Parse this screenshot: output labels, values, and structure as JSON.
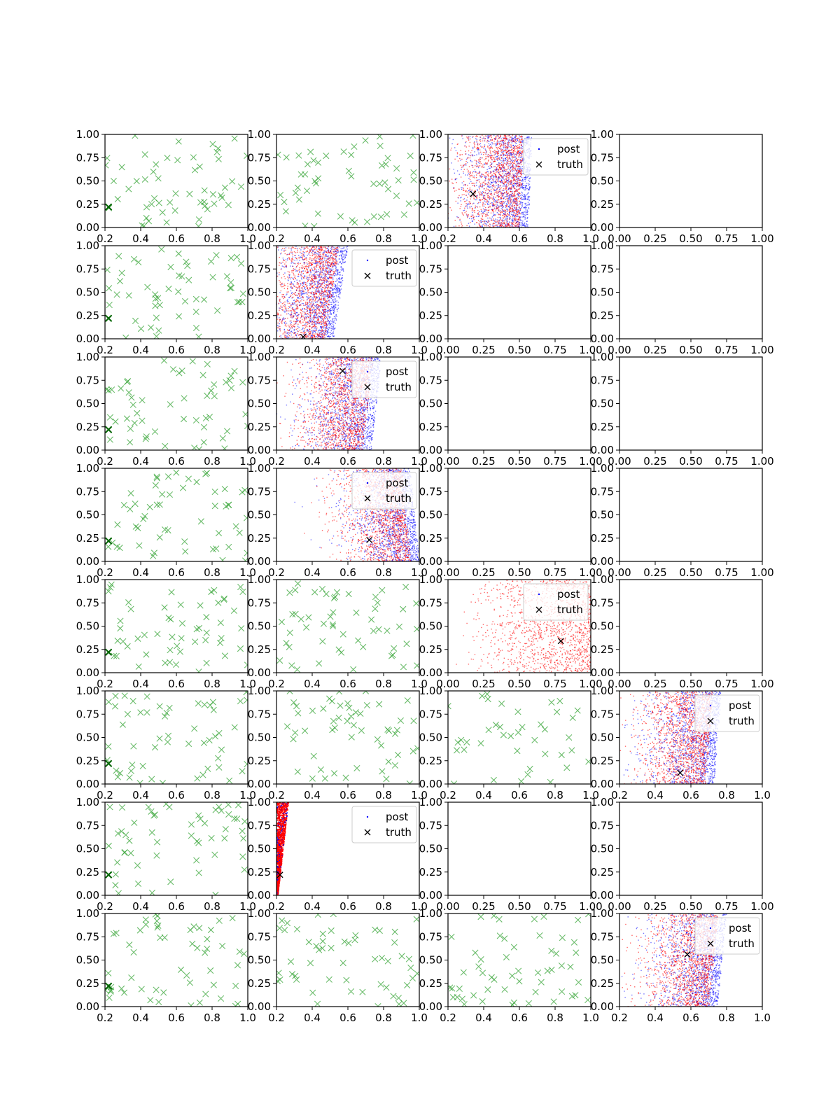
{
  "chart_data": {
    "type": "scatter",
    "grid": false,
    "rows": 8,
    "cols": 4,
    "colors": {
      "green_x": "#2ca02c",
      "post_blue": "#0000ff",
      "post_red": "#ff0000",
      "truth": "#000000"
    },
    "legend_labels": [
      "post",
      "truth"
    ],
    "panels": [
      {
        "row": 0,
        "col": 0,
        "kind": "green",
        "xlim": [
          0.2,
          1.0
        ],
        "ylim": [
          0.0,
          1.0
        ],
        "xticks": [
          "0.2",
          "0.4",
          "0.6",
          "0.8",
          "1.0"
        ],
        "yticks": [
          "0.00",
          "0.25",
          "0.50",
          "0.75",
          "1.00"
        ],
        "marker": [
          0.22,
          0.22
        ]
      },
      {
        "row": 0,
        "col": 1,
        "kind": "green",
        "xlim": [
          0.2,
          1.0
        ],
        "ylim": [
          0.0,
          1.0
        ],
        "xticks": [
          "0.2",
          "0.4",
          "0.6",
          "0.8",
          "1.0"
        ],
        "yticks": [
          "0.00",
          "0.25",
          "0.50",
          "0.75",
          "1.00"
        ]
      },
      {
        "row": 0,
        "col": 2,
        "kind": "posterior",
        "xlim": [
          0.2,
          1.0
        ],
        "ylim": [
          0.0,
          1.0
        ],
        "xticks": [
          "0.2",
          "0.4",
          "0.6",
          "0.8",
          "1.0"
        ],
        "yticks": [
          "0.00",
          "0.25",
          "0.50",
          "0.75",
          "1.00"
        ],
        "truth": [
          0.34,
          0.36
        ],
        "legend": "upper right",
        "edge": [
          0.6,
          0.62
        ]
      },
      {
        "row": 0,
        "col": 3,
        "kind": "empty",
        "xlim": [
          0.0,
          1.0
        ],
        "ylim": [
          0.0,
          1.0
        ],
        "xticks": [
          "0.00",
          "0.25",
          "0.50",
          "0.75",
          "1.00"
        ],
        "yticks": [
          "0.00",
          "0.25",
          "0.50",
          "0.75",
          "1.00"
        ]
      },
      {
        "row": 1,
        "col": 0,
        "kind": "green",
        "xlim": [
          0.2,
          1.0
        ],
        "ylim": [
          0.0,
          1.0
        ],
        "xticks": [
          "0.2",
          "0.4",
          "0.6",
          "0.8",
          "1.0"
        ],
        "yticks": [
          "0.00",
          "0.25",
          "0.50",
          "0.75",
          "1.00"
        ],
        "marker": [
          0.22,
          0.22
        ]
      },
      {
        "row": 1,
        "col": 1,
        "kind": "posterior",
        "xlim": [
          0.2,
          1.0
        ],
        "ylim": [
          0.0,
          1.0
        ],
        "xticks": [
          "0.2",
          "0.4",
          "0.6",
          "0.8",
          "1.0"
        ],
        "yticks": [
          "0.00",
          "0.25",
          "0.50",
          "0.75",
          "1.00"
        ],
        "truth": [
          0.35,
          0.02
        ],
        "legend": "upper right",
        "edge": [
          0.47,
          0.55
        ]
      },
      {
        "row": 1,
        "col": 2,
        "kind": "empty",
        "xlim": [
          0.0,
          1.0
        ],
        "ylim": [
          0.0,
          1.0
        ],
        "xticks": [
          "0.00",
          "0.25",
          "0.50",
          "0.75",
          "1.00"
        ],
        "yticks": [
          "0.00",
          "0.25",
          "0.50",
          "0.75",
          "1.00"
        ]
      },
      {
        "row": 1,
        "col": 3,
        "kind": "empty",
        "xlim": [
          0.0,
          1.0
        ],
        "ylim": [
          0.0,
          1.0
        ],
        "xticks": [
          "0.00",
          "0.25",
          "0.50",
          "0.75",
          "1.00"
        ],
        "yticks": [
          "0.00",
          "0.25",
          "0.50",
          "0.75",
          "1.00"
        ]
      },
      {
        "row": 2,
        "col": 0,
        "kind": "green",
        "xlim": [
          0.2,
          1.0
        ],
        "ylim": [
          0.0,
          1.0
        ],
        "xticks": [
          "0.2",
          "0.4",
          "0.6",
          "0.8",
          "1.0"
        ],
        "yticks": [
          "0.00",
          "0.25",
          "0.50",
          "0.75",
          "1.00"
        ],
        "marker": [
          0.22,
          0.22
        ]
      },
      {
        "row": 2,
        "col": 1,
        "kind": "posterior",
        "xlim": [
          0.2,
          1.0
        ],
        "ylim": [
          0.0,
          1.0
        ],
        "xticks": [
          "0.2",
          "0.4",
          "0.6",
          "0.8",
          "1.0"
        ],
        "yticks": [
          "0.00",
          "0.25",
          "0.50",
          "0.75",
          "1.00"
        ],
        "truth": [
          0.57,
          0.85
        ],
        "legend": "upper right",
        "edge": [
          0.68,
          0.74
        ]
      },
      {
        "row": 2,
        "col": 2,
        "kind": "empty",
        "xlim": [
          0.0,
          1.0
        ],
        "ylim": [
          0.0,
          1.0
        ],
        "xticks": [
          "0.00",
          "0.25",
          "0.50",
          "0.75",
          "1.00"
        ],
        "yticks": [
          "0.00",
          "0.25",
          "0.50",
          "0.75",
          "1.00"
        ]
      },
      {
        "row": 2,
        "col": 3,
        "kind": "empty",
        "xlim": [
          0.0,
          1.0
        ],
        "ylim": [
          0.0,
          1.0
        ],
        "xticks": [
          "0.00",
          "0.25",
          "0.50",
          "0.75",
          "1.00"
        ],
        "yticks": [
          "0.00",
          "0.25",
          "0.50",
          "0.75",
          "1.00"
        ]
      },
      {
        "row": 3,
        "col": 0,
        "kind": "green",
        "xlim": [
          0.2,
          1.0
        ],
        "ylim": [
          0.0,
          1.0
        ],
        "xticks": [
          "0.2",
          "0.4",
          "0.6",
          "0.8",
          "1.0"
        ],
        "yticks": [
          "0.00",
          "0.25",
          "0.50",
          "0.75",
          "1.00"
        ],
        "marker": [
          0.22,
          0.22
        ]
      },
      {
        "row": 3,
        "col": 1,
        "kind": "posterior",
        "xlim": [
          0.2,
          1.0
        ],
        "ylim": [
          0.0,
          1.0
        ],
        "xticks": [
          "0.2",
          "0.4",
          "0.6",
          "0.8",
          "1.0"
        ],
        "yticks": [
          "0.00",
          "0.25",
          "0.50",
          "0.75",
          "1.00"
        ],
        "truth": [
          0.72,
          0.23
        ],
        "legend": "upper right",
        "edge": [
          0.95,
          0.9
        ]
      },
      {
        "row": 3,
        "col": 2,
        "kind": "empty",
        "xlim": [
          0.0,
          1.0
        ],
        "ylim": [
          0.0,
          1.0
        ],
        "xticks": [
          "0.00",
          "0.25",
          "0.50",
          "0.75",
          "1.00"
        ],
        "yticks": [
          "0.00",
          "0.25",
          "0.50",
          "0.75",
          "1.00"
        ]
      },
      {
        "row": 3,
        "col": 3,
        "kind": "empty",
        "xlim": [
          0.0,
          1.0
        ],
        "ylim": [
          0.0,
          1.0
        ],
        "xticks": [
          "0.00",
          "0.25",
          "0.50",
          "0.75",
          "1.00"
        ],
        "yticks": [
          "0.00",
          "0.25",
          "0.50",
          "0.75",
          "1.00"
        ]
      },
      {
        "row": 4,
        "col": 0,
        "kind": "green",
        "xlim": [
          0.2,
          1.0
        ],
        "ylim": [
          0.0,
          1.0
        ],
        "xticks": [
          "0.2",
          "0.4",
          "0.6",
          "0.8",
          "1.0"
        ],
        "yticks": [
          "0.00",
          "0.25",
          "0.50",
          "0.75",
          "1.00"
        ],
        "marker": [
          0.22,
          0.22
        ]
      },
      {
        "row": 4,
        "col": 1,
        "kind": "green",
        "xlim": [
          0.2,
          1.0
        ],
        "ylim": [
          0.0,
          1.0
        ],
        "xticks": [
          "0.2",
          "0.4",
          "0.6",
          "0.8",
          "1.0"
        ],
        "yticks": [
          "0.00",
          "0.25",
          "0.50",
          "0.75",
          "1.00"
        ]
      },
      {
        "row": 4,
        "col": 2,
        "kind": "posterior",
        "xlim": [
          0.0,
          1.0
        ],
        "ylim": [
          0.0,
          1.0
        ],
        "xticks": [
          "0.00",
          "0.25",
          "0.50",
          "0.75",
          "1.00"
        ],
        "yticks": [
          "0.00",
          "0.25",
          "0.50",
          "0.75",
          "1.00"
        ],
        "truth": [
          0.79,
          0.34
        ],
        "legend": "upper right",
        "edge": [
          1.0,
          1.0
        ],
        "redonly": true
      },
      {
        "row": 4,
        "col": 3,
        "kind": "empty",
        "xlim": [
          0.0,
          1.0
        ],
        "ylim": [
          0.0,
          1.0
        ],
        "xticks": [
          "0.00",
          "0.25",
          "0.50",
          "0.75",
          "1.00"
        ],
        "yticks": [
          "0.00",
          "0.25",
          "0.50",
          "0.75",
          "1.00"
        ]
      },
      {
        "row": 5,
        "col": 0,
        "kind": "green",
        "xlim": [
          0.2,
          1.0
        ],
        "ylim": [
          0.0,
          1.0
        ],
        "xticks": [
          "0.2",
          "0.4",
          "0.6",
          "0.8",
          "1.0"
        ],
        "yticks": [
          "0.00",
          "0.25",
          "0.50",
          "0.75",
          "1.00"
        ],
        "marker": [
          0.22,
          0.22
        ]
      },
      {
        "row": 5,
        "col": 1,
        "kind": "green",
        "xlim": [
          0.2,
          1.0
        ],
        "ylim": [
          0.0,
          1.0
        ],
        "xticks": [
          "0.2",
          "0.4",
          "0.6",
          "0.8",
          "1.0"
        ],
        "yticks": [
          "0.00",
          "0.25",
          "0.50",
          "0.75",
          "1.00"
        ]
      },
      {
        "row": 5,
        "col": 2,
        "kind": "green",
        "xlim": [
          0.2,
          1.0
        ],
        "ylim": [
          0.0,
          1.0
        ],
        "xticks": [
          "0.2",
          "0.4",
          "0.6",
          "0.8",
          "1.0"
        ],
        "yticks": [
          "0.00",
          "0.25",
          "0.50",
          "0.75",
          "1.00"
        ],
        "sparse": true
      },
      {
        "row": 5,
        "col": 3,
        "kind": "posterior",
        "xlim": [
          0.2,
          1.0
        ],
        "ylim": [
          0.0,
          1.0
        ],
        "xticks": [
          "0.2",
          "0.4",
          "0.6",
          "0.8",
          "1.0"
        ],
        "yticks": [
          "0.00",
          "0.25",
          "0.50",
          "0.75",
          "1.00"
        ],
        "truth": [
          0.54,
          0.12
        ],
        "legend": "upper right",
        "edge": [
          0.68,
          0.72
        ]
      },
      {
        "row": 6,
        "col": 0,
        "kind": "green",
        "xlim": [
          0.2,
          1.0
        ],
        "ylim": [
          0.0,
          1.0
        ],
        "xticks": [
          "0.2",
          "0.4",
          "0.6",
          "0.8",
          "1.0"
        ],
        "yticks": [
          "0.00",
          "0.25",
          "0.50",
          "0.75",
          "1.00"
        ],
        "marker": [
          0.22,
          0.22
        ]
      },
      {
        "row": 6,
        "col": 1,
        "kind": "narrow",
        "xlim": [
          0.2,
          1.0
        ],
        "ylim": [
          0.0,
          1.0
        ],
        "xticks": [
          "0.2",
          "0.4",
          "0.6",
          "0.8",
          "1.0"
        ],
        "yticks": [
          "0.00",
          "0.25",
          "0.50",
          "0.75",
          "1.00"
        ],
        "truth": [
          0.22,
          0.22
        ],
        "legend": "upper right"
      },
      {
        "row": 6,
        "col": 2,
        "kind": "empty",
        "xlim": [
          0.0,
          1.0
        ],
        "ylim": [
          0.0,
          1.0
        ],
        "xticks": [
          "0.00",
          "0.25",
          "0.50",
          "0.75",
          "1.00"
        ],
        "yticks": [
          "0.00",
          "0.25",
          "0.50",
          "0.75",
          "1.00"
        ]
      },
      {
        "row": 6,
        "col": 3,
        "kind": "empty",
        "xlim": [
          0.0,
          1.0
        ],
        "ylim": [
          0.0,
          1.0
        ],
        "xticks": [
          "0.00",
          "0.25",
          "0.50",
          "0.75",
          "1.00"
        ],
        "yticks": [
          "0.00",
          "0.25",
          "0.50",
          "0.75",
          "1.00"
        ]
      },
      {
        "row": 7,
        "col": 0,
        "kind": "green",
        "xlim": [
          0.2,
          1.0
        ],
        "ylim": [
          0.0,
          1.0
        ],
        "xticks": [
          "0.2",
          "0.4",
          "0.6",
          "0.8",
          "1.0"
        ],
        "yticks": [
          "0.00",
          "0.25",
          "0.50",
          "0.75",
          "1.00"
        ],
        "marker": [
          0.22,
          0.22
        ]
      },
      {
        "row": 7,
        "col": 1,
        "kind": "green",
        "xlim": [
          0.2,
          1.0
        ],
        "ylim": [
          0.0,
          1.0
        ],
        "xticks": [
          "0.2",
          "0.4",
          "0.6",
          "0.8",
          "1.0"
        ],
        "yticks": [
          "0.00",
          "0.25",
          "0.50",
          "0.75",
          "1.00"
        ]
      },
      {
        "row": 7,
        "col": 2,
        "kind": "green",
        "xlim": [
          0.2,
          1.0
        ],
        "ylim": [
          0.0,
          1.0
        ],
        "xticks": [
          "0.2",
          "0.4",
          "0.6",
          "0.8",
          "1.0"
        ],
        "yticks": [
          "0.00",
          "0.25",
          "0.50",
          "0.75",
          "1.00"
        ]
      },
      {
        "row": 7,
        "col": 3,
        "kind": "posterior",
        "xlim": [
          0.2,
          1.0
        ],
        "ylim": [
          0.0,
          1.0
        ],
        "xticks": [
          "0.2",
          "0.4",
          "0.6",
          "0.8",
          "1.0"
        ],
        "yticks": [
          "0.00",
          "0.25",
          "0.50",
          "0.75",
          "1.00"
        ],
        "truth": [
          0.58,
          0.56
        ],
        "legend": "upper right",
        "edge": [
          0.7,
          0.75
        ]
      }
    ]
  }
}
